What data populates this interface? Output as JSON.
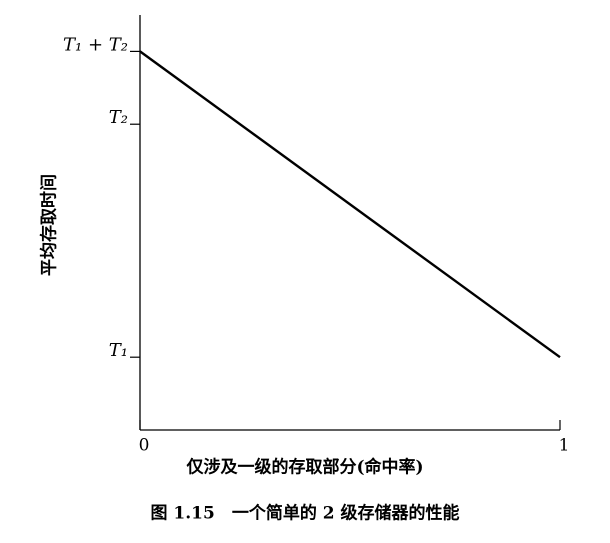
{
  "chart_data": {
    "type": "line",
    "caption": "图 1.15　一个简单的 2 级存储器的性能",
    "x_label": "仅涉及一级的存取部分(命中率)",
    "y_label": "平均存取时间",
    "x": [
      0,
      1
    ],
    "values": [
      5.2,
      1
    ],
    "color": "#000000",
    "xlim": [
      0,
      1
    ],
    "xticks": [
      0,
      1
    ],
    "ylim": [
      0,
      5.7
    ],
    "yticks": [
      {
        "value": 1,
        "label": "T₁"
      },
      {
        "value": 4.2,
        "label": "T₂"
      },
      {
        "value": 5.2,
        "label": "T₁ + T₂"
      }
    ]
  }
}
